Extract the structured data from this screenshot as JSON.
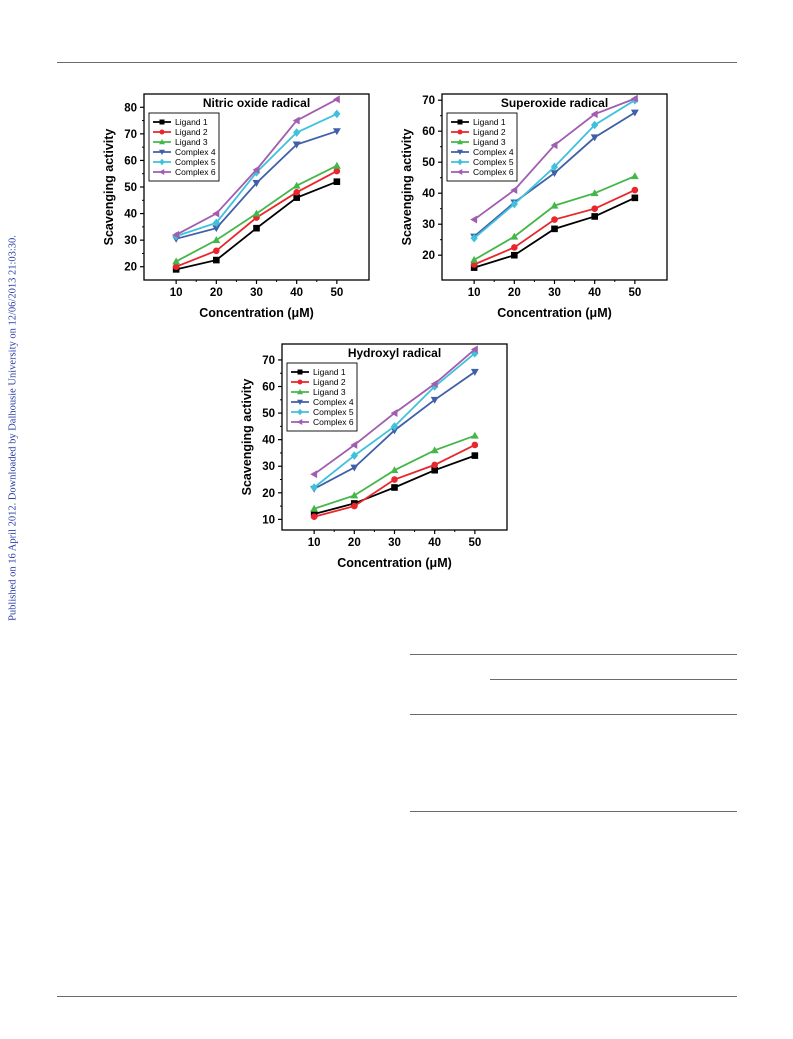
{
  "side_note": "Published on 16 April 2012. Downloaded by Dalhousie University on 12/06/2013 21:03:30.",
  "legend_entries": [
    {
      "name": "Ligand 1",
      "color": "#000000",
      "marker": "square"
    },
    {
      "name": "Ligand 2",
      "color": "#e8262b",
      "marker": "circle"
    },
    {
      "name": "Ligand 3",
      "color": "#45b649",
      "marker": "triangle-up"
    },
    {
      "name": "Complex 4",
      "color": "#3f5fa8",
      "marker": "triangle-down"
    },
    {
      "name": "Complex 5",
      "color": "#3fc1dc",
      "marker": "diamond"
    },
    {
      "name": "Complex 6",
      "color": "#a15db0",
      "marker": "triangle-left"
    }
  ],
  "chart_data": [
    {
      "type": "line",
      "title": "Nitric oxide radical",
      "xlabel": "Concentration (μM)",
      "ylabel": "Scavenging activity",
      "x": [
        10,
        20,
        30,
        40,
        50
      ],
      "xlim": [
        2,
        58
      ],
      "ylim": [
        15,
        85
      ],
      "yticks": [
        20,
        30,
        40,
        50,
        60,
        70,
        80
      ],
      "grid": false,
      "legend_position": "top-left",
      "series": [
        {
          "name": "Ligand 1",
          "values": [
            19,
            22.5,
            34.5,
            46,
            52
          ]
        },
        {
          "name": "Ligand 2",
          "values": [
            20,
            26,
            38.5,
            48,
            56
          ]
        },
        {
          "name": "Ligand 3",
          "values": [
            22,
            30,
            40,
            50.5,
            58
          ]
        },
        {
          "name": "Complex 4",
          "values": [
            30.5,
            34.5,
            51.5,
            66,
            71
          ]
        },
        {
          "name": "Complex 5",
          "values": [
            31.5,
            36.5,
            55.5,
            70.5,
            77.5
          ]
        },
        {
          "name": "Complex 6",
          "values": [
            32,
            40,
            56.5,
            75,
            83
          ]
        }
      ]
    },
    {
      "type": "line",
      "title": "Superoxide radical",
      "xlabel": "Concentration (μM)",
      "ylabel": "Scavenging activity",
      "x": [
        10,
        20,
        30,
        40,
        50
      ],
      "xlim": [
        2,
        58
      ],
      "ylim": [
        12,
        72
      ],
      "yticks": [
        20,
        30,
        40,
        50,
        60,
        70
      ],
      "grid": false,
      "legend_position": "top-left",
      "series": [
        {
          "name": "Ligand 1",
          "values": [
            16,
            20,
            28.5,
            32.5,
            38.5
          ]
        },
        {
          "name": "Ligand 2",
          "values": [
            17,
            22.5,
            31.5,
            35,
            41
          ]
        },
        {
          "name": "Ligand 3",
          "values": [
            18.5,
            26,
            36,
            40,
            45.5
          ]
        },
        {
          "name": "Complex 4",
          "values": [
            26,
            37,
            46.5,
            58,
            66
          ]
        },
        {
          "name": "Complex 5",
          "values": [
            25.5,
            36.5,
            48.5,
            62,
            70
          ]
        },
        {
          "name": "Complex 6",
          "values": [
            31.5,
            41,
            55.5,
            65.5,
            70.5
          ]
        }
      ]
    },
    {
      "type": "line",
      "title": "Hydroxyl radical",
      "xlabel": "Concentration (μM)",
      "ylabel": "Scavenging activity",
      "x": [
        10,
        20,
        30,
        40,
        50
      ],
      "xlim": [
        2,
        58
      ],
      "ylim": [
        6,
        76
      ],
      "yticks": [
        10,
        20,
        30,
        40,
        50,
        60,
        70
      ],
      "grid": false,
      "legend_position": "top-left",
      "series": [
        {
          "name": "Ligand 1",
          "values": [
            12,
            16,
            22,
            28.5,
            34
          ]
        },
        {
          "name": "Ligand 2",
          "values": [
            11,
            15,
            25,
            30.5,
            38
          ]
        },
        {
          "name": "Ligand 3",
          "values": [
            14,
            19,
            28.5,
            36,
            41.5
          ]
        },
        {
          "name": "Complex 4",
          "values": [
            21.5,
            29.5,
            43.5,
            55,
            65.5
          ]
        },
        {
          "name": "Complex 5",
          "values": [
            22,
            34,
            45,
            60,
            72.5
          ]
        },
        {
          "name": "Complex 6",
          "values": [
            27,
            38,
            50,
            61,
            74
          ]
        }
      ]
    }
  ]
}
